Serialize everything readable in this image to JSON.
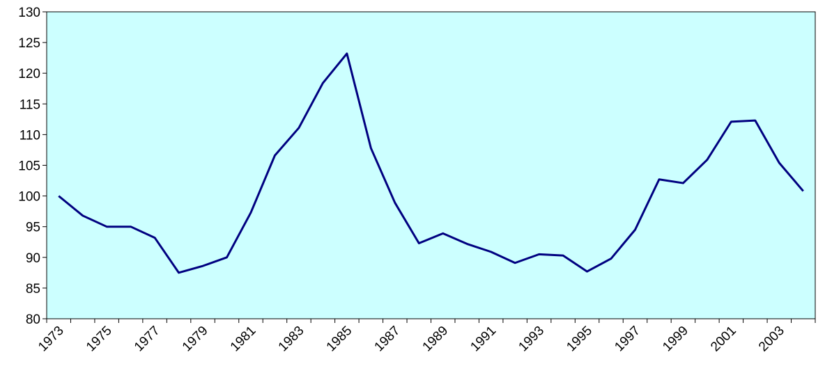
{
  "chart_data": {
    "type": "line",
    "categories": [
      "1973",
      null,
      "1975",
      null,
      "1977",
      null,
      "1979",
      null,
      "1981",
      null,
      "1983",
      null,
      "1985",
      null,
      "1987",
      null,
      "1989",
      null,
      "1991",
      null,
      "1993",
      null,
      "1995",
      null,
      "1997",
      null,
      "1999",
      null,
      "2001",
      null,
      "2003",
      null
    ],
    "series": [
      {
        "color": "#000080",
        "values": [
          100,
          96.8,
          95,
          95,
          93.2,
          87.5,
          88.6,
          90,
          97.3,
          106.6,
          111.1,
          118.4,
          123.2,
          107.8,
          98.9,
          92.3,
          93.9,
          92.2,
          90.9,
          89.1,
          90.5,
          90.3,
          87.7,
          89.8,
          94.5,
          102.7,
          102.1,
          105.9,
          112.1,
          112.3,
          105.4,
          100.8
        ]
      }
    ],
    "ylim": [
      80,
      130
    ],
    "yticks": [
      80,
      85,
      90,
      95,
      100,
      105,
      110,
      115,
      120,
      125,
      130
    ],
    "plot_background": "#ccffff"
  }
}
